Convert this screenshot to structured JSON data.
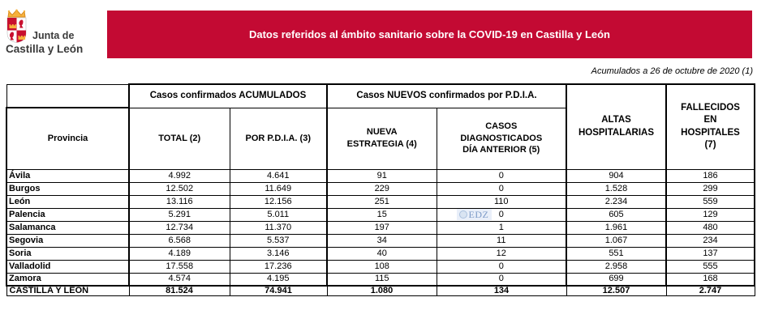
{
  "logo": {
    "line1": "Junta de",
    "line2": "Castilla y León"
  },
  "banner": {
    "title": "Datos referidos al ámbito sanitario sobre la COVID-19 en Castilla y León",
    "bg": "#C30A33",
    "text_color": "#FFFFFF"
  },
  "note": "Acumulados a 26 de octubre de 2020 (1)",
  "watermark": {
    "text": "EDZ",
    "row": 3,
    "col": 4
  },
  "table": {
    "group_headers": [
      {
        "label": "Casos confirmados ACUMULADOS"
      },
      {
        "label": "Casos NUEVOS confirmados por P.D.I.A."
      }
    ],
    "columns": [
      "Provincia",
      "TOTAL (2)",
      "POR P.D.I.A. (3)",
      "NUEVA\nESTRATEGIA (4)",
      "CASOS\nDIAGNOSTICADOS\nDÍA ANTERIOR (5)",
      "ALTAS\nHOSPITALARIAS",
      "FALLECIDOS\nEN\nHOSPITALES\n(7)"
    ],
    "rows": [
      [
        "Ávila",
        "4.992",
        "4.641",
        "91",
        "0",
        "904",
        "186"
      ],
      [
        "Burgos",
        "12.502",
        "11.649",
        "229",
        "0",
        "1.528",
        "299"
      ],
      [
        "León",
        "13.116",
        "12.156",
        "251",
        "110",
        "2.234",
        "559"
      ],
      [
        "Palencia",
        "5.291",
        "5.011",
        "15",
        "0",
        "605",
        "129"
      ],
      [
        "Salamanca",
        "12.734",
        "11.370",
        "197",
        "1",
        "1.961",
        "480"
      ],
      [
        "Segovia",
        "6.568",
        "5.537",
        "34",
        "11",
        "1.067",
        "234"
      ],
      [
        "Soria",
        "4.189",
        "3.146",
        "40",
        "12",
        "551",
        "137"
      ],
      [
        "Valladolid",
        "17.558",
        "17.236",
        "108",
        "0",
        "2.958",
        "555"
      ],
      [
        "Zamora",
        "4.574",
        "4.195",
        "115",
        "0",
        "699",
        "168"
      ]
    ],
    "total_row": [
      "CASTILLA Y LEÓN",
      "81.524",
      "74.941",
      "1.080",
      "134",
      "12.507",
      "2.747"
    ]
  },
  "chart_data": {
    "type": "table",
    "title": "Datos referidos al ámbito sanitario sobre la COVID-19 en Castilla y León",
    "subtitle": "Acumulados a 26 de octubre de 2020 (1)",
    "columns": [
      "Provincia",
      "TOTAL (2)",
      "POR P.D.I.A. (3)",
      "NUEVA ESTRATEGIA (4)",
      "CASOS DIAGNOSTICADOS DÍA ANTERIOR (5)",
      "ALTAS HOSPITALARIAS",
      "FALLECIDOS EN HOSPITALES (7)"
    ],
    "rows": [
      [
        "Ávila",
        4992,
        4641,
        91,
        0,
        904,
        186
      ],
      [
        "Burgos",
        12502,
        11649,
        229,
        0,
        1528,
        299
      ],
      [
        "León",
        13116,
        12156,
        251,
        110,
        2234,
        559
      ],
      [
        "Palencia",
        5291,
        5011,
        15,
        0,
        605,
        129
      ],
      [
        "Salamanca",
        12734,
        11370,
        197,
        1,
        1961,
        480
      ],
      [
        "Segovia",
        6568,
        5537,
        34,
        11,
        1067,
        234
      ],
      [
        "Soria",
        4189,
        3146,
        40,
        12,
        551,
        137
      ],
      [
        "Valladolid",
        17558,
        17236,
        108,
        0,
        2958,
        555
      ],
      [
        "Zamora",
        4574,
        4195,
        115,
        0,
        699,
        168
      ],
      [
        "CASTILLA Y LEÓN",
        81524,
        74941,
        1080,
        134,
        12507,
        2747
      ]
    ]
  }
}
